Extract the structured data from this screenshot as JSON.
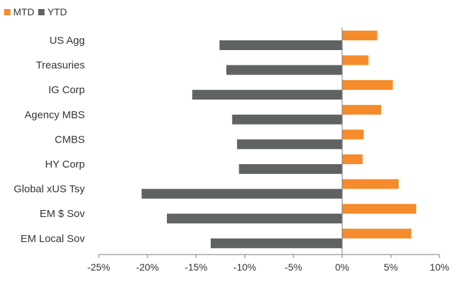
{
  "chart_data": {
    "type": "bar",
    "orientation": "horizontal",
    "categories": [
      "US Agg",
      "Treasuries",
      "IG Corp",
      "Agency MBS",
      "CMBS",
      "HY Corp",
      "Global xUS Tsy",
      "EM $ Sov",
      "EM Local Sov"
    ],
    "series": [
      {
        "name": "MTD",
        "color": "#f58b2b",
        "values": [
          3.6,
          2.7,
          5.2,
          4.0,
          2.2,
          2.1,
          5.8,
          7.6,
          7.1
        ]
      },
      {
        "name": "YTD",
        "color": "#5f6362",
        "values": [
          -12.6,
          -11.9,
          -15.4,
          -11.3,
          -10.8,
          -10.6,
          -20.6,
          -18.0,
          -13.5
        ]
      }
    ],
    "xlim": [
      -25,
      10
    ],
    "xticks": [
      -25,
      -20,
      -15,
      -10,
      -5,
      0,
      5,
      10
    ],
    "xtick_labels": [
      "-25%",
      "-20%",
      "-15%",
      "-10%",
      "-5%",
      "0%",
      "5%",
      "10%"
    ],
    "legend_position": "top-left",
    "grid": false,
    "title": "",
    "xlabel": "",
    "ylabel": ""
  }
}
